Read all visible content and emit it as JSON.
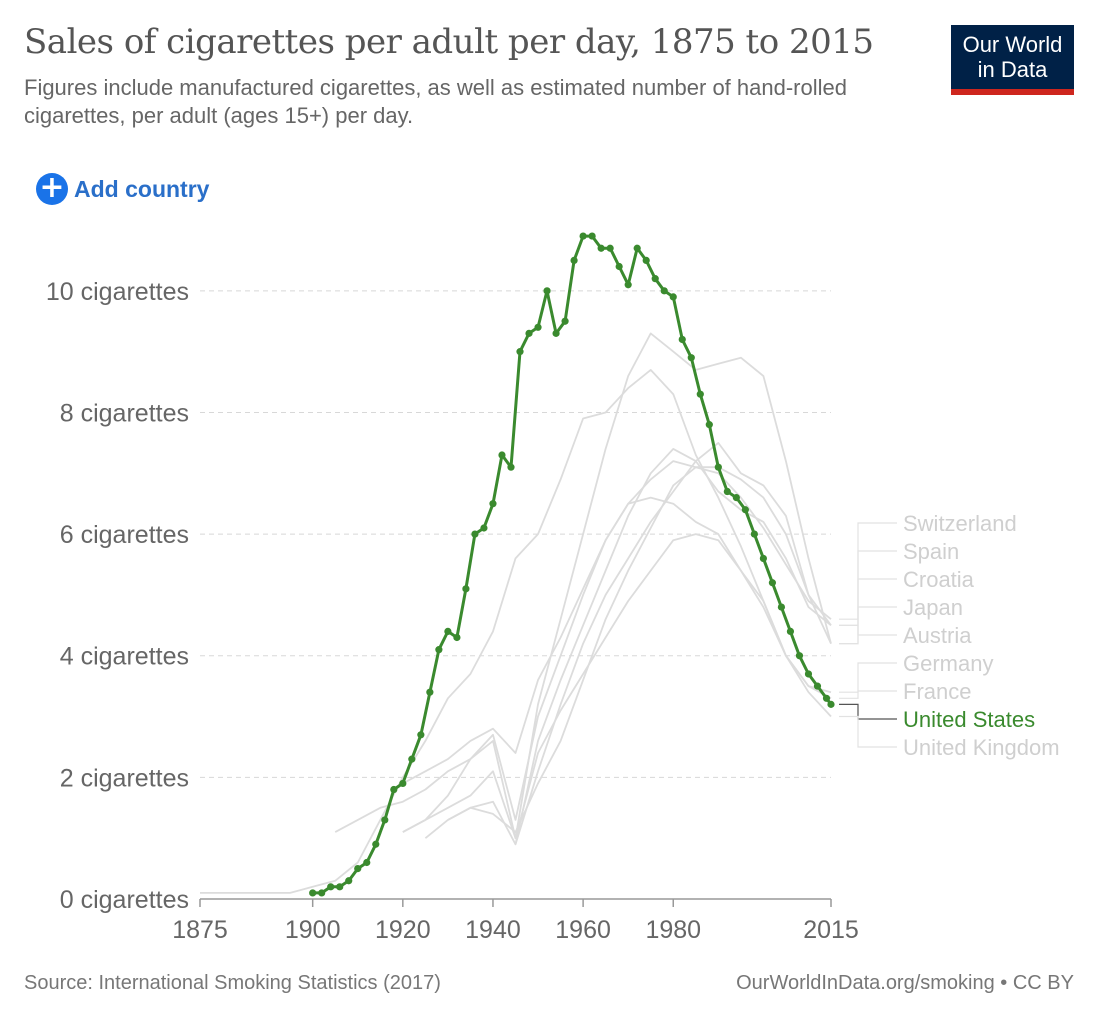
{
  "header": {
    "title": "Sales of cigarettes per adult per day, 1875 to 2015",
    "subtitle": "Figures include manufactured cigarettes, as well as estimated number of hand-rolled cigarettes, per adult (ages 15+) per day.",
    "logo_line1": "Our World",
    "logo_line2": "in Data"
  },
  "controls": {
    "add_country_label": "Add country",
    "add_country_icon": "plus-circle-icon"
  },
  "footer": {
    "source": "Source: International Smoking Statistics (2017)",
    "credit": "OurWorldInData.org/smoking • CC BY"
  },
  "colors": {
    "highlight": "#3a8a2e",
    "muted": "#dcdcdc",
    "brand": "#002147",
    "brand_accent": "#ce261e"
  },
  "chart_data": {
    "type": "line",
    "title": "Sales of cigarettes per adult per day, 1875 to 2015",
    "xlim": [
      1875,
      2015
    ],
    "ylim": [
      0,
      11
    ],
    "x_ticks": [
      {
        "value": 1875,
        "label": "1875"
      },
      {
        "value": 1900,
        "label": "1900"
      },
      {
        "value": 1920,
        "label": "1920"
      },
      {
        "value": 1940,
        "label": "1940"
      },
      {
        "value": 1960,
        "label": "1960"
      },
      {
        "value": 1980,
        "label": "1980"
      },
      {
        "value": 2015,
        "label": "2015"
      }
    ],
    "y_ticks": [
      {
        "value": 0,
        "label": "0 cigarettes"
      },
      {
        "value": 2,
        "label": "2 cigarettes"
      },
      {
        "value": 4,
        "label": "4 cigarettes"
      },
      {
        "value": 6,
        "label": "6 cigarettes"
      },
      {
        "value": 8,
        "label": "8 cigarettes"
      },
      {
        "value": 10,
        "label": "10 cigarettes"
      }
    ],
    "grid": true,
    "legend_placement": "right, at line ends",
    "highlighted_series": "United States",
    "series": [
      {
        "name": "Switzerland",
        "x": [
          1920,
          1925,
          1930,
          1935,
          1940,
          1945,
          1950,
          1955,
          1960,
          1965,
          1970,
          1975,
          1980,
          1985,
          1990,
          1995,
          2000,
          2005,
          2010,
          2015
        ],
        "y": [
          1.9,
          2.1,
          2.3,
          2.6,
          2.8,
          2.4,
          3.6,
          4.3,
          5.1,
          5.9,
          6.5,
          6.9,
          7.2,
          7.1,
          7.0,
          6.6,
          6.1,
          5.5,
          4.9,
          4.6
        ]
      },
      {
        "name": "Spain",
        "x": [
          1930,
          1935,
          1940,
          1945,
          1950,
          1955,
          1960,
          1965,
          1970,
          1975,
          1980,
          1985,
          1990,
          1995,
          2000,
          2005,
          2010,
          2015
        ],
        "y": [
          1.3,
          1.5,
          1.4,
          1.1,
          1.9,
          2.6,
          3.6,
          4.6,
          5.4,
          6.1,
          6.8,
          7.1,
          7.1,
          6.9,
          6.6,
          6.0,
          5.0,
          4.5
        ]
      },
      {
        "name": "Croatia",
        "x": [
          1945,
          1950,
          1955,
          1960,
          1965,
          1970,
          1975,
          1980,
          1985,
          1990,
          1995,
          2000,
          2005,
          2010,
          2015
        ],
        "y": [
          0.9,
          2.1,
          3.2,
          4.2,
          5.0,
          5.6,
          6.2,
          6.7,
          7.2,
          7.5,
          7.0,
          6.8,
          6.3,
          5.0,
          4.2
        ]
      },
      {
        "name": "Japan",
        "x": [
          1920,
          1925,
          1930,
          1935,
          1940,
          1945,
          1950,
          1955,
          1960,
          1965,
          1970,
          1975,
          1980,
          1985,
          1990,
          1995,
          2000,
          2005,
          2010,
          2015
        ],
        "y": [
          1.1,
          1.3,
          1.5,
          1.7,
          2.1,
          1.0,
          3.2,
          4.6,
          6.0,
          7.4,
          8.6,
          9.3,
          9.0,
          8.7,
          8.8,
          8.9,
          8.6,
          7.2,
          5.6,
          4.2
        ]
      },
      {
        "name": "Austria",
        "x": [
          1925,
          1930,
          1935,
          1940,
          1945,
          1950,
          1955,
          1960,
          1965,
          1970,
          1975,
          1980,
          1985,
          1990,
          1995,
          2000,
          2005,
          2010,
          2015
        ],
        "y": [
          1.0,
          1.3,
          1.5,
          1.6,
          0.9,
          2.6,
          3.6,
          4.5,
          5.4,
          6.3,
          7.0,
          7.4,
          7.2,
          6.7,
          6.4,
          6.2,
          5.6,
          4.8,
          4.5
        ]
      },
      {
        "name": "Germany",
        "x": [
          1920,
          1925,
          1930,
          1935,
          1940,
          1945,
          1950,
          1955,
          1960,
          1965,
          1970,
          1975,
          1980,
          1985,
          1990,
          1995,
          2000,
          2005,
          2010,
          2015
        ],
        "y": [
          1.1,
          1.3,
          1.7,
          2.3,
          2.7,
          1.3,
          3.0,
          4.0,
          5.0,
          5.9,
          6.5,
          6.6,
          6.5,
          6.2,
          6.0,
          5.4,
          4.8,
          4.0,
          3.5,
          3.3
        ]
      },
      {
        "name": "France",
        "x": [
          1905,
          1910,
          1915,
          1920,
          1925,
          1930,
          1935,
          1940,
          1945,
          1950,
          1955,
          1960,
          1965,
          1970,
          1975,
          1980,
          1985,
          1990,
          1995,
          2000,
          2005,
          2010,
          2015
        ],
        "y": [
          1.1,
          1.3,
          1.5,
          1.6,
          1.8,
          2.1,
          2.3,
          2.6,
          1.0,
          2.4,
          3.1,
          3.7,
          4.3,
          4.9,
          5.4,
          5.9,
          6.0,
          5.9,
          5.4,
          4.9,
          4.0,
          3.5,
          3.4
        ]
      },
      {
        "name": "United States",
        "x": [
          1900,
          1902,
          1904,
          1906,
          1908,
          1910,
          1912,
          1914,
          1916,
          1918,
          1920,
          1922,
          1924,
          1926,
          1928,
          1930,
          1932,
          1934,
          1936,
          1938,
          1940,
          1942,
          1944,
          1946,
          1948,
          1950,
          1952,
          1954,
          1956,
          1958,
          1960,
          1962,
          1964,
          1966,
          1968,
          1970,
          1972,
          1974,
          1976,
          1978,
          1980,
          1982,
          1984,
          1986,
          1988,
          1990,
          1992,
          1994,
          1996,
          1998,
          2000,
          2002,
          2004,
          2006,
          2008,
          2010,
          2012,
          2014,
          2015
        ],
        "y": [
          0.1,
          0.1,
          0.2,
          0.2,
          0.3,
          0.5,
          0.6,
          0.9,
          1.3,
          1.8,
          1.9,
          2.3,
          2.7,
          3.4,
          4.1,
          4.4,
          4.3,
          5.1,
          6.0,
          6.1,
          6.5,
          7.3,
          7.1,
          9.0,
          9.3,
          9.4,
          10.0,
          9.3,
          9.5,
          10.5,
          10.9,
          10.9,
          10.7,
          10.7,
          10.4,
          10.1,
          10.7,
          10.5,
          10.2,
          10.0,
          9.9,
          9.2,
          8.9,
          8.3,
          7.8,
          7.1,
          6.7,
          6.6,
          6.4,
          6.0,
          5.6,
          5.2,
          4.8,
          4.4,
          4.0,
          3.7,
          3.5,
          3.3,
          3.2
        ]
      },
      {
        "name": "United Kingdom",
        "x": [
          1875,
          1880,
          1885,
          1890,
          1895,
          1900,
          1905,
          1910,
          1915,
          1920,
          1925,
          1930,
          1935,
          1940,
          1945,
          1950,
          1955,
          1960,
          1965,
          1970,
          1975,
          1980,
          1985,
          1990,
          1995,
          2000,
          2005,
          2010,
          2015
        ],
        "y": [
          0.1,
          0.1,
          0.1,
          0.1,
          0.1,
          0.2,
          0.3,
          0.6,
          1.3,
          2.0,
          2.6,
          3.3,
          3.7,
          4.4,
          5.6,
          6.0,
          6.9,
          7.9,
          8.0,
          8.4,
          8.7,
          8.3,
          7.3,
          6.6,
          5.8,
          4.9,
          4.0,
          3.4,
          3.0
        ]
      }
    ]
  }
}
